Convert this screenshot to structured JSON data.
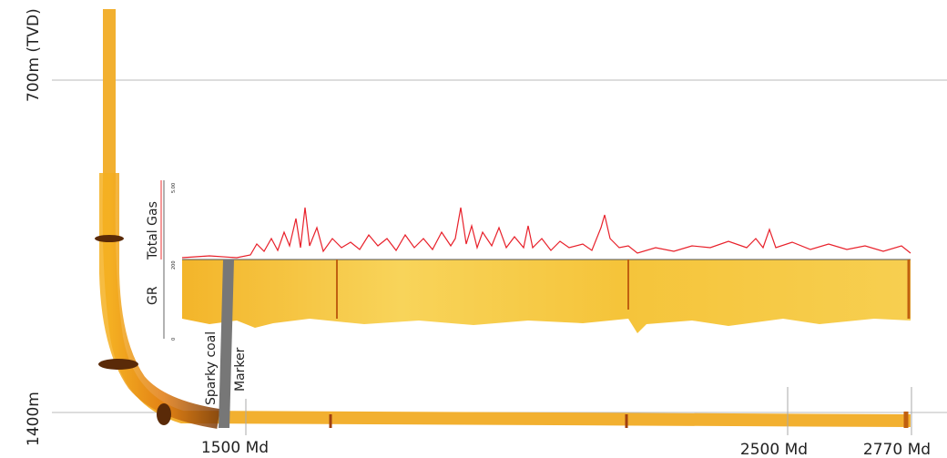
{
  "axis_labels": {
    "top_depth": "700m (TVD)",
    "bottom_depth": "1400m"
  },
  "logs": {
    "gas": {
      "label": "Total Gas",
      "scale_max": "5.00"
    },
    "gr": {
      "label": "GR",
      "scale_max": "200",
      "scale_min": "0"
    }
  },
  "annotations": {
    "coal": "Sparky coal",
    "marker": "Marker"
  },
  "measured_depths": [
    "1500 Md",
    "2500 Md",
    "2770 Md"
  ]
}
